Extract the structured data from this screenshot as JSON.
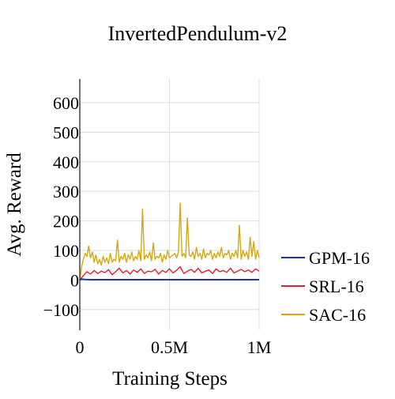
{
  "chart_data": {
    "type": "line",
    "title": "InvertedPendulum-v2",
    "xlabel": "Training Steps",
    "ylabel": "Avg. Reward",
    "xlim": [
      0,
      1000000
    ],
    "ylim": [
      -170,
      680
    ],
    "x_ticks": [
      {
        "value": 0,
        "label": "0"
      },
      {
        "value": 500000,
        "label": "0.5M"
      },
      {
        "value": 1000000,
        "label": "1M"
      }
    ],
    "y_ticks": [
      {
        "value": -100,
        "label": "−100"
      },
      {
        "value": 0,
        "label": "0"
      },
      {
        "value": 100,
        "label": "100"
      },
      {
        "value": 200,
        "label": "200"
      },
      {
        "value": 300,
        "label": "300"
      },
      {
        "value": 400,
        "label": "400"
      },
      {
        "value": 500,
        "label": "500"
      },
      {
        "value": 600,
        "label": "600"
      }
    ],
    "grid": true,
    "legend_position": "right",
    "series": [
      {
        "name": "GPM-16",
        "color": "#2233aa",
        "x": [
          0,
          10000,
          30000,
          60000,
          100000,
          200000,
          300000,
          400000,
          500000,
          600000,
          700000,
          800000,
          900000,
          1000000
        ],
        "y": [
          0,
          3,
          2,
          1,
          1,
          1,
          1,
          1,
          1,
          1,
          1,
          1,
          1,
          1
        ]
      },
      {
        "name": "SRL-16",
        "color": "#e02030",
        "x": [
          0,
          20000,
          40000,
          60000,
          80000,
          100000,
          120000,
          140000,
          160000,
          180000,
          200000,
          220000,
          240000,
          260000,
          280000,
          300000,
          320000,
          340000,
          360000,
          380000,
          400000,
          420000,
          440000,
          460000,
          480000,
          500000,
          520000,
          540000,
          560000,
          580000,
          600000,
          620000,
          640000,
          660000,
          680000,
          700000,
          720000,
          740000,
          760000,
          780000,
          800000,
          820000,
          840000,
          860000,
          880000,
          900000,
          920000,
          940000,
          960000,
          980000,
          1000000
        ],
        "y": [
          0,
          15,
          28,
          20,
          32,
          22,
          30,
          25,
          35,
          18,
          28,
          40,
          24,
          32,
          20,
          34,
          26,
          38,
          22,
          30,
          28,
          36,
          20,
          32,
          26,
          38,
          24,
          33,
          45,
          22,
          30,
          36,
          26,
          40,
          24,
          30,
          34,
          22,
          38,
          28,
          32,
          26,
          40,
          24,
          30,
          36,
          28,
          34,
          26,
          38,
          30
        ]
      },
      {
        "name": "SAC-16",
        "color": "#d4a810",
        "x": [
          0,
          10000,
          20000,
          30000,
          40000,
          50000,
          60000,
          70000,
          80000,
          90000,
          100000,
          110000,
          120000,
          130000,
          140000,
          150000,
          160000,
          170000,
          180000,
          190000,
          200000,
          210000,
          220000,
          230000,
          240000,
          250000,
          260000,
          270000,
          280000,
          290000,
          300000,
          310000,
          320000,
          330000,
          340000,
          350000,
          360000,
          370000,
          380000,
          390000,
          400000,
          410000,
          420000,
          430000,
          440000,
          450000,
          460000,
          470000,
          480000,
          490000,
          500000,
          510000,
          520000,
          530000,
          540000,
          550000,
          560000,
          570000,
          580000,
          590000,
          600000,
          610000,
          620000,
          630000,
          640000,
          650000,
          660000,
          670000,
          680000,
          690000,
          700000,
          710000,
          720000,
          730000,
          740000,
          750000,
          760000,
          770000,
          780000,
          790000,
          800000,
          810000,
          820000,
          830000,
          840000,
          850000,
          860000,
          870000,
          880000,
          890000,
          900000,
          910000,
          920000,
          930000,
          940000,
          950000,
          960000,
          970000,
          980000,
          990000,
          1000000
        ],
        "y": [
          0,
          45,
          70,
          90,
          80,
          115,
          75,
          95,
          60,
          85,
          55,
          70,
          50,
          80,
          60,
          75,
          55,
          90,
          60,
          70,
          65,
          135,
          60,
          80,
          70,
          90,
          60,
          85,
          70,
          95,
          65,
          80,
          70,
          100,
          65,
          240,
          70,
          85,
          75,
          95,
          65,
          125,
          70,
          80,
          75,
          90,
          60,
          85,
          70,
          100,
          75,
          80,
          85,
          90,
          75,
          95,
          260,
          80,
          90,
          75,
          210,
          85,
          80,
          95,
          70,
          110,
          80,
          90,
          70,
          105,
          75,
          90,
          85,
          100,
          70,
          90,
          75,
          95,
          80,
          110,
          75,
          90,
          85,
          100,
          70,
          90,
          80,
          100,
          75,
          185,
          70,
          100,
          80,
          95,
          70,
          145,
          80,
          130,
          70,
          100,
          75
        ]
      }
    ]
  }
}
